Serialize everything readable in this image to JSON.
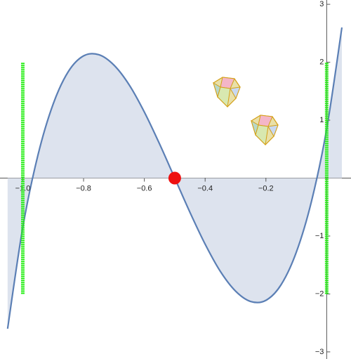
{
  "chart_data": {
    "type": "line",
    "x": [
      -1.05,
      -1.0,
      -0.95,
      -0.9,
      -0.85,
      -0.8,
      -0.75,
      -0.7,
      -0.65,
      -0.6,
      -0.55,
      -0.5,
      -0.45,
      -0.4,
      -0.35,
      -0.3,
      -0.25,
      -0.2,
      -0.15,
      -0.1,
      -0.05,
      0,
      0.05
    ],
    "series": [
      {
        "color": "#5b7fb5",
        "fill": "#dde3ee",
        "values": [
          -2.6,
          -0.85,
          0.4,
          1.28,
          1.84,
          2.11,
          2.13,
          1.95,
          1.61,
          1.14,
          0.59,
          0,
          -0.59,
          -1.14,
          -1.61,
          -1.95,
          -2.13,
          -2.11,
          -1.84,
          -1.28,
          -0.4,
          0.85,
          2.6
        ]
      }
    ],
    "xlim": [
      -1.075,
      0.08
    ],
    "ylim": [
      -3.05,
      3.05
    ],
    "xticks": [
      {
        "value": -1.0,
        "label": "−1.0"
      },
      {
        "value": -0.8,
        "label": "−0.8"
      },
      {
        "value": -0.6,
        "label": "−0.6"
      },
      {
        "value": -0.4,
        "label": "−0.4"
      },
      {
        "value": -0.2,
        "label": "−0.2"
      }
    ],
    "yticks": [
      {
        "value": -3,
        "label": "−3"
      },
      {
        "value": -2,
        "label": "−2"
      },
      {
        "value": -1,
        "label": "−1"
      },
      1,
      2,
      3
    ],
    "vlines": [
      {
        "x": -1.0,
        "ylim": [
          -2,
          2
        ],
        "color": "#22ee11"
      },
      {
        "x": 0.0,
        "ylim": [
          -2,
          2
        ],
        "color": "#22ee11"
      }
    ],
    "point": {
      "x": -0.5,
      "y": 0,
      "color": "#ee1111"
    }
  }
}
